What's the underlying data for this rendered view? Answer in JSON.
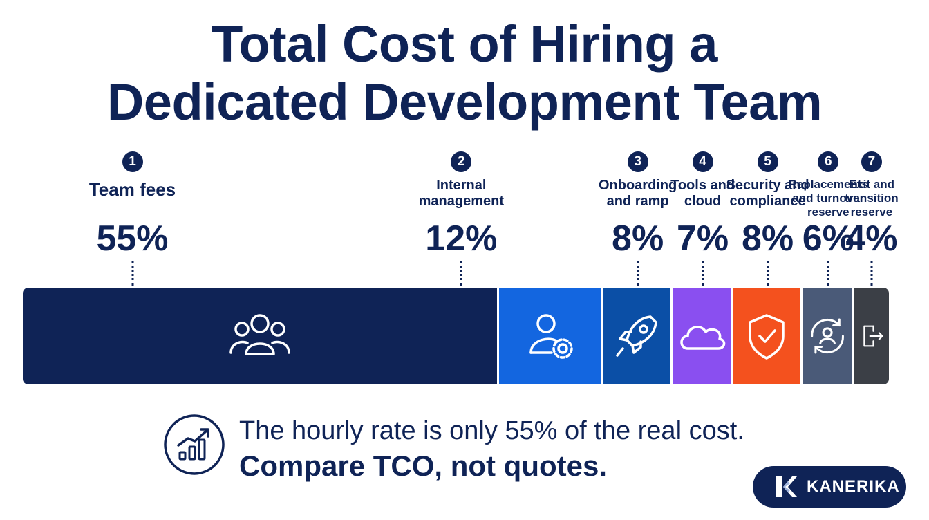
{
  "title_line1": "Total Cost of Hiring a",
  "title_line2": "Dedicated Development Team",
  "chart_data": {
    "type": "bar",
    "orientation": "stacked-horizontal-100",
    "categories": [
      "Team fees",
      "Internal\nmanagement",
      "Onboarding\nand ramp",
      "Tools and\ncloud",
      "Security and\ncompliance",
      "Replacements\nand turnover\nreserve",
      "Exit and\ntransition\nreserve"
    ],
    "numbers": [
      "1",
      "2",
      "3",
      "4",
      "5",
      "6",
      "7"
    ],
    "values": [
      55,
      12,
      8,
      7,
      8,
      6,
      4
    ],
    "value_labels": [
      "55%",
      "12%",
      "8%",
      "7%",
      "8%",
      "6%",
      "4%"
    ],
    "unit": "%",
    "colors": [
      "#0f2356",
      "#1366e0",
      "#0b4fa6",
      "#8a4ff0",
      "#f4511e",
      "#4a5a78",
      "#3b3f46"
    ],
    "icons": [
      "team-icon",
      "user-gear-icon",
      "rocket-icon",
      "cloud-icon",
      "shield-check-icon",
      "user-refresh-icon",
      "exit-icon"
    ]
  },
  "note": {
    "icon": "growth-chart-icon",
    "line1": "The hourly rate is only 55% of the real cost.",
    "line2": "Compare TCO, not quotes."
  },
  "brand": {
    "name": "KANERIKA",
    "icon": "kanerika-logo-icon"
  }
}
